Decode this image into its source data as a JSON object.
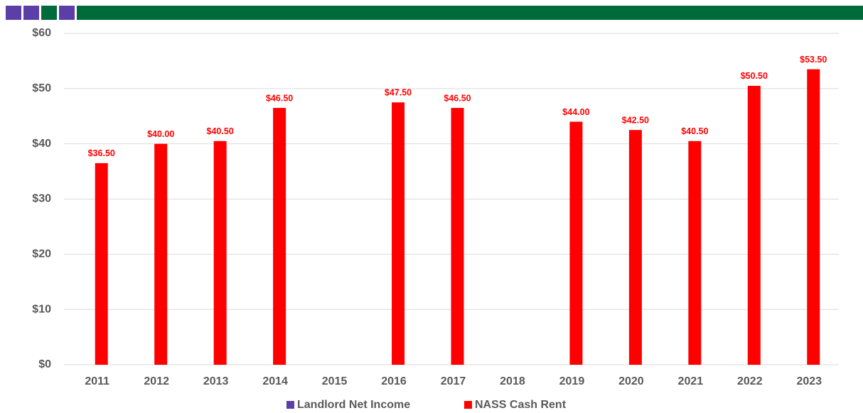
{
  "chart_data": {
    "type": "bar",
    "categories": [
      "2011",
      "2012",
      "2013",
      "2014",
      "2015",
      "2016",
      "2017",
      "2018",
      "2019",
      "2020",
      "2021",
      "2022",
      "2023"
    ],
    "series": [
      {
        "name": "Landlord Net Income",
        "color": "#5b3fa6",
        "values": [
          null,
          null,
          null,
          null,
          null,
          null,
          null,
          null,
          null,
          null,
          null,
          null,
          null
        ]
      },
      {
        "name": "NASS Cash Rent",
        "color": "#ff0000",
        "values": [
          36.5,
          40,
          40.5,
          46.5,
          null,
          47.5,
          46.5,
          null,
          44,
          42.5,
          40.5,
          50.5,
          53.5
        ],
        "value_labels": [
          "$36.50",
          "$40.00",
          "$40.50",
          "$46.50",
          null,
          "$47.50",
          "$46.50",
          null,
          "$44.00",
          "$42.50",
          "$40.50",
          "$50.50",
          "$53.50"
        ]
      }
    ],
    "ylim": [
      0,
      60
    ],
    "yticks": [
      {
        "value": 0,
        "label": "$0"
      },
      {
        "value": 10,
        "label": "$10"
      },
      {
        "value": 20,
        "label": "$20"
      },
      {
        "value": 30,
        "label": "$30"
      },
      {
        "value": 40,
        "label": "$40"
      },
      {
        "value": 50,
        "label": "$50"
      },
      {
        "value": 60,
        "label": "$60"
      }
    ],
    "grid": true,
    "legend": "bottom"
  }
}
